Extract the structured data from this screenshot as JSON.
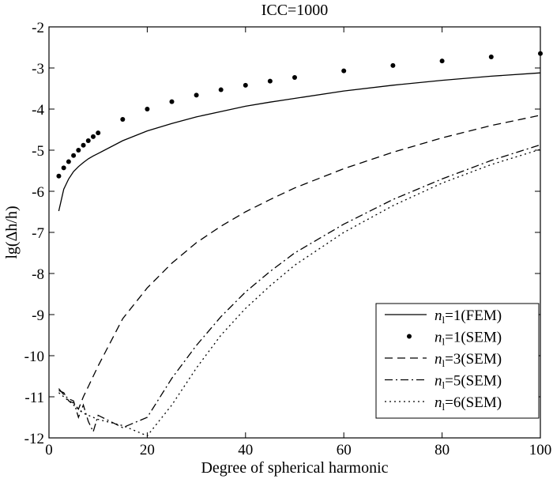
{
  "chart_data": {
    "type": "line",
    "title": "ICC=1000",
    "xlabel": "Degree of spherical harmonic",
    "ylabel": "lg(Δh/h)",
    "xlim": [
      0,
      100
    ],
    "ylim": [
      -12,
      -2
    ],
    "xticks": [
      0,
      20,
      40,
      60,
      80,
      100
    ],
    "yticks": [
      -2,
      -3,
      -4,
      -5,
      -6,
      -7,
      -8,
      -9,
      -10,
      -11,
      -12
    ],
    "xtick_labels": [
      "0",
      "20",
      "40",
      "60",
      "80",
      "100"
    ],
    "ytick_labels": [
      "-2",
      "-3",
      "-4",
      "-5",
      "-6",
      "-7",
      "-8",
      "-9",
      "-10",
      "-11",
      "-12"
    ],
    "grid": false,
    "legend_position": "bottom-right",
    "series": [
      {
        "name": "n_l=1(FEM)",
        "legend_italic": "n",
        "legend_sub": "l",
        "legend_rest": "=1(FEM)",
        "style": "solid",
        "x": [
          2,
          3,
          4,
          5,
          6,
          7,
          8,
          9,
          10,
          15,
          20,
          25,
          30,
          35,
          40,
          45,
          50,
          60,
          70,
          80,
          90,
          100
        ],
        "y": [
          -6.48,
          -5.95,
          -5.7,
          -5.52,
          -5.4,
          -5.3,
          -5.21,
          -5.14,
          -5.08,
          -4.77,
          -4.53,
          -4.35,
          -4.19,
          -4.06,
          -3.93,
          -3.83,
          -3.74,
          -3.56,
          -3.42,
          -3.3,
          -3.2,
          -3.12
        ]
      },
      {
        "name": "n_l=1(SEM)",
        "legend_italic": "n",
        "legend_sub": "l",
        "legend_rest": "=1(SEM)",
        "style": "dots",
        "x": [
          2,
          3,
          4,
          5,
          6,
          7,
          8,
          9,
          10,
          15,
          20,
          25,
          30,
          35,
          40,
          45,
          50,
          60,
          70,
          80,
          90,
          100
        ],
        "y": [
          -5.63,
          -5.43,
          -5.28,
          -5.13,
          -5.0,
          -4.88,
          -4.77,
          -4.67,
          -4.58,
          -4.25,
          -4.0,
          -3.82,
          -3.66,
          -3.53,
          -3.42,
          -3.32,
          -3.23,
          -3.07,
          -2.94,
          -2.83,
          -2.73,
          -2.65
        ]
      },
      {
        "name": "n_l=3(SEM)",
        "legend_italic": "n",
        "legend_sub": "l",
        "legend_rest": "=3(SEM)",
        "style": "dashed",
        "x": [
          2,
          3,
          4,
          5,
          6,
          7,
          8,
          9,
          10,
          15,
          20,
          25,
          30,
          35,
          40,
          45,
          50,
          60,
          70,
          80,
          90,
          100
        ],
        "y": [
          -10.85,
          -10.9,
          -11.1,
          -11.15,
          -11.3,
          -11.0,
          -10.75,
          -10.5,
          -10.25,
          -9.1,
          -8.35,
          -7.75,
          -7.25,
          -6.85,
          -6.5,
          -6.2,
          -5.92,
          -5.45,
          -5.05,
          -4.7,
          -4.4,
          -4.15
        ]
      },
      {
        "name": "n_l=5(SEM)",
        "legend_italic": "n",
        "legend_sub": "l",
        "legend_rest": "=5(SEM)",
        "style": "dashdot",
        "x": [
          2,
          3,
          4,
          5,
          6,
          7,
          8,
          9,
          10,
          15,
          20,
          25,
          30,
          35,
          40,
          45,
          50,
          60,
          70,
          80,
          90,
          100
        ],
        "y": [
          -10.8,
          -10.95,
          -11.05,
          -11.1,
          -11.5,
          -11.2,
          -11.6,
          -11.85,
          -11.45,
          -11.75,
          -11.5,
          -10.55,
          -9.75,
          -9.05,
          -8.45,
          -7.95,
          -7.5,
          -6.8,
          -6.2,
          -5.7,
          -5.25,
          -4.87
        ]
      },
      {
        "name": "n_l=6(SEM)",
        "legend_italic": "n",
        "legend_sub": "l",
        "legend_rest": "=6(SEM)",
        "style": "dotted",
        "x": [
          2,
          3,
          4,
          5,
          6,
          7,
          8,
          9,
          10,
          15,
          20,
          25,
          30,
          35,
          40,
          45,
          50,
          60,
          70,
          80,
          90,
          100
        ],
        "y": [
          -10.9,
          -11.0,
          -11.1,
          -11.2,
          -11.3,
          -11.4,
          -11.45,
          -11.5,
          -11.55,
          -11.7,
          -11.95,
          -11.2,
          -10.3,
          -9.5,
          -8.85,
          -8.3,
          -7.8,
          -7.0,
          -6.35,
          -5.8,
          -5.35,
          -4.98
        ]
      }
    ]
  }
}
